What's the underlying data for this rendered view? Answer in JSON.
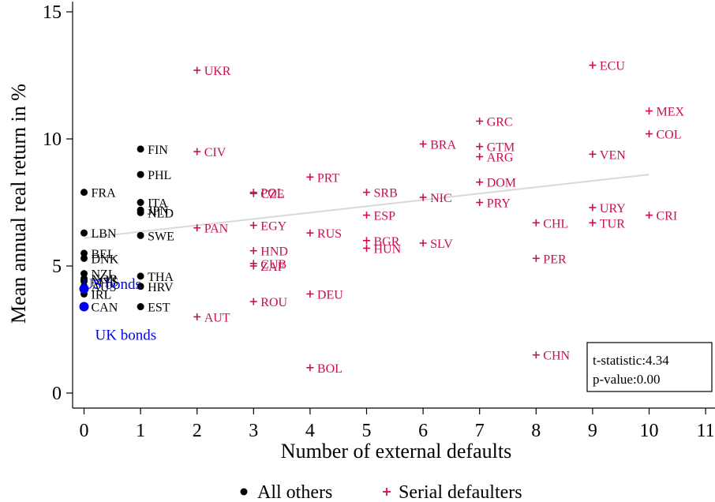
{
  "chart_data": {
    "type": "scatter",
    "xlabel": "Number of external defaults",
    "ylabel": "Mean annual real return in %",
    "xlim": [
      -0.2,
      11.2
    ],
    "ylim": [
      -0.6,
      15.4
    ],
    "xticks": [
      0,
      1,
      2,
      3,
      4,
      5,
      6,
      7,
      8,
      9,
      10,
      11
    ],
    "yticks": [
      0,
      5,
      10,
      15
    ],
    "grid": false,
    "legend_position": "bottom",
    "colors": {
      "others": "#000000",
      "serial": "#c8104e",
      "benchmark": "#0000ee",
      "fit": "#d9d9d9"
    },
    "series": [
      {
        "name": "All others",
        "marker": "dot",
        "points": [
          {
            "label": "FRA",
            "x": 0,
            "y": 7.9
          },
          {
            "label": "LBN",
            "x": 0,
            "y": 6.3
          },
          {
            "label": "BEL",
            "x": 0,
            "y": 5.5
          },
          {
            "label": "DNK",
            "x": 0,
            "y": 5.3
          },
          {
            "label": "NZL",
            "x": 0,
            "y": 4.7
          },
          {
            "label": "NOR",
            "x": 0,
            "y": 4.5
          },
          {
            "label": "MYS",
            "x": 0,
            "y": 4.4
          },
          {
            "label": "AUS",
            "x": 0,
            "y": 4.2
          },
          {
            "label": "IRL",
            "x": 0,
            "y": 3.9
          },
          {
            "label": "CAN",
            "x": 0,
            "y": 3.4
          },
          {
            "label": "FIN",
            "x": 1,
            "y": 9.6
          },
          {
            "label": "PHL",
            "x": 1,
            "y": 8.6
          },
          {
            "label": "ITA",
            "x": 1,
            "y": 7.5
          },
          {
            "label": "JPN",
            "x": 1,
            "y": 7.2
          },
          {
            "label": "NLD",
            "x": 1,
            "y": 7.1
          },
          {
            "label": "SWE",
            "x": 1,
            "y": 6.2
          },
          {
            "label": "THA",
            "x": 1,
            "y": 4.6
          },
          {
            "label": "HRV",
            "x": 1,
            "y": 4.2
          },
          {
            "label": "EST",
            "x": 1,
            "y": 3.4
          }
        ]
      },
      {
        "name": "Serial defaulters",
        "marker": "plus",
        "points": [
          {
            "label": "UKR",
            "x": 2,
            "y": 12.7
          },
          {
            "label": "CIV",
            "x": 2,
            "y": 9.5
          },
          {
            "label": "PAN",
            "x": 2,
            "y": 6.5
          },
          {
            "label": "AUT",
            "x": 2,
            "y": 3.0
          },
          {
            "label": "POL",
            "x": 3,
            "y": 7.9
          },
          {
            "label": "CZE",
            "x": 3,
            "y": 7.85
          },
          {
            "label": "EGY",
            "x": 3,
            "y": 6.6
          },
          {
            "label": "HND",
            "x": 3,
            "y": 5.6
          },
          {
            "label": "CUB",
            "x": 3,
            "y": 5.1
          },
          {
            "label": "ZAF",
            "x": 3,
            "y": 5.0
          },
          {
            "label": "ROU",
            "x": 3,
            "y": 3.6
          },
          {
            "label": "PRT",
            "x": 4,
            "y": 8.5
          },
          {
            "label": "RUS",
            "x": 4,
            "y": 6.3
          },
          {
            "label": "DEU",
            "x": 4,
            "y": 3.9
          },
          {
            "label": "BOL",
            "x": 4,
            "y": 1.0
          },
          {
            "label": "SRB",
            "x": 5,
            "y": 7.9
          },
          {
            "label": "ESP",
            "x": 5,
            "y": 7.0
          },
          {
            "label": "BGR",
            "x": 5,
            "y": 6.0
          },
          {
            "label": "HUN",
            "x": 5,
            "y": 5.7
          },
          {
            "label": "BRA",
            "x": 6,
            "y": 9.8
          },
          {
            "label": "NIC",
            "x": 6,
            "y": 7.7
          },
          {
            "label": "SLV",
            "x": 6,
            "y": 5.9
          },
          {
            "label": "GRC",
            "x": 7,
            "y": 10.7
          },
          {
            "label": "GTM",
            "x": 7,
            "y": 9.7
          },
          {
            "label": "ARG",
            "x": 7,
            "y": 9.3
          },
          {
            "label": "DOM",
            "x": 7,
            "y": 8.3
          },
          {
            "label": "PRY",
            "x": 7,
            "y": 7.5
          },
          {
            "label": "CHL",
            "x": 8,
            "y": 6.7
          },
          {
            "label": "PER",
            "x": 8,
            "y": 5.3
          },
          {
            "label": "CHN",
            "x": 8,
            "y": 1.5
          },
          {
            "label": "ECU",
            "x": 9,
            "y": 12.9
          },
          {
            "label": "VEN",
            "x": 9,
            "y": 9.4
          },
          {
            "label": "URY",
            "x": 9,
            "y": 7.3
          },
          {
            "label": "TUR",
            "x": 9,
            "y": 6.7
          },
          {
            "label": "MEX",
            "x": 10,
            "y": 11.1
          },
          {
            "label": "COL",
            "x": 10,
            "y": 10.2
          },
          {
            "label": "CRI",
            "x": 10,
            "y": 7.0
          }
        ]
      }
    ],
    "benchmarks": [
      {
        "label": "US bonds",
        "x": 0,
        "y": 4.1
      },
      {
        "label": "UK bonds",
        "x": 0,
        "y": 3.4
      }
    ],
    "fit_line": {
      "x": [
        0,
        10
      ],
      "y": [
        6.1,
        8.6
      ]
    },
    "annotation": [
      "t-statistic:4.34",
      "p-value:0.00"
    ],
    "legend": [
      {
        "label": "All others",
        "marker": "dot"
      },
      {
        "label": "Serial defaulters",
        "marker": "plus"
      }
    ]
  }
}
